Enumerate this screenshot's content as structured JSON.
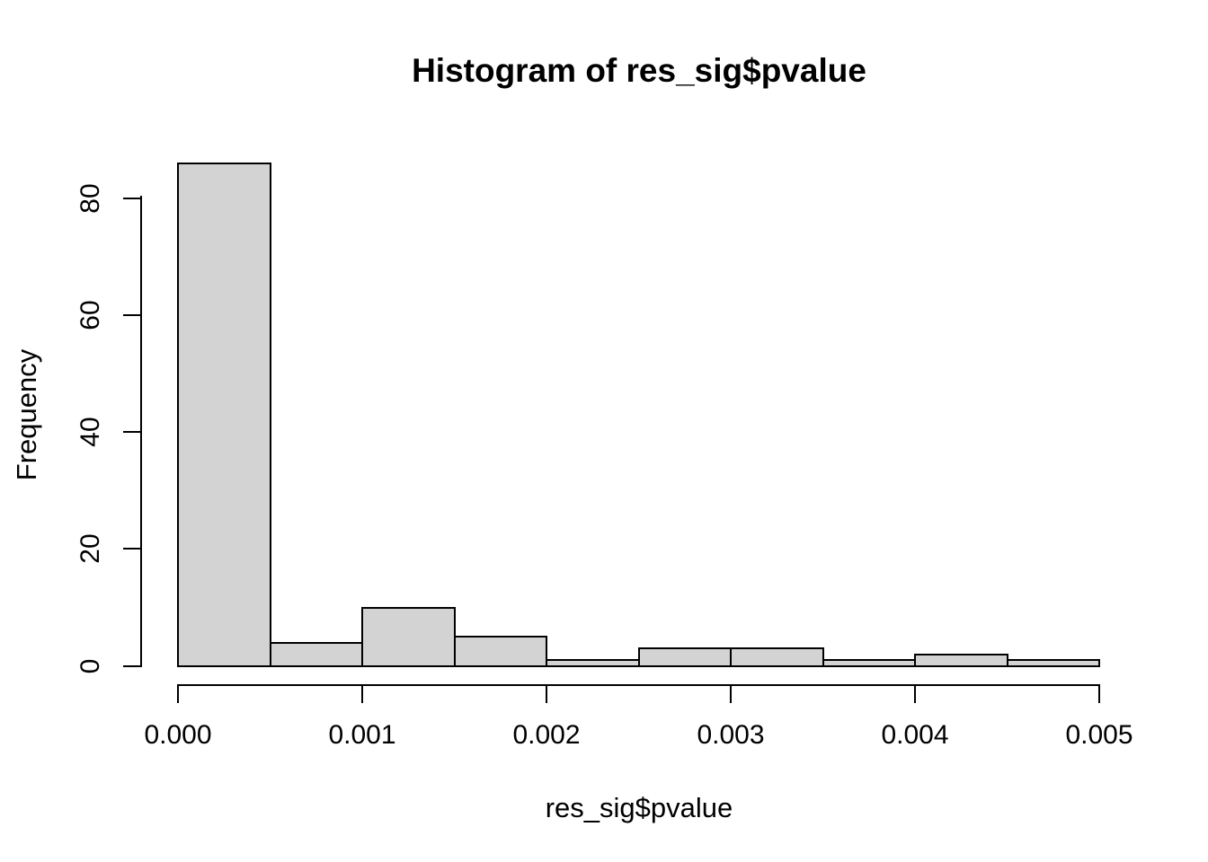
{
  "figure": {
    "background": "#ffffff",
    "text_color": "#000000"
  },
  "chart_data": {
    "type": "bar",
    "subtype": "histogram",
    "title": "Histogram of res_sig$pvalue",
    "xlabel": "res_sig$pvalue",
    "ylabel": "Frequency",
    "bin_width": 0.0005,
    "bin_edges": [
      0.0,
      0.0005,
      0.001,
      0.0015,
      0.002,
      0.0025,
      0.003,
      0.0035,
      0.004,
      0.0045,
      0.005
    ],
    "values": [
      86,
      4,
      10,
      5,
      1,
      3,
      3,
      1,
      2,
      1
    ],
    "xlim": [
      0.0,
      0.005
    ],
    "y_axis_range": [
      0,
      80
    ],
    "ylim": [
      0,
      86
    ],
    "grid": false,
    "legend": false,
    "x_ticks": [
      {
        "value": 0.0,
        "label": "0.000"
      },
      {
        "value": 0.001,
        "label": "0.001"
      },
      {
        "value": 0.002,
        "label": "0.002"
      },
      {
        "value": 0.003,
        "label": "0.003"
      },
      {
        "value": 0.004,
        "label": "0.004"
      },
      {
        "value": 0.005,
        "label": "0.005"
      }
    ],
    "y_ticks": [
      {
        "value": 0,
        "label": "0"
      },
      {
        "value": 20,
        "label": "20"
      },
      {
        "value": 40,
        "label": "40"
      },
      {
        "value": 60,
        "label": "60"
      },
      {
        "value": 80,
        "label": "80"
      }
    ],
    "bar_fill": "#d3d3d3",
    "bar_border": "#000000"
  }
}
